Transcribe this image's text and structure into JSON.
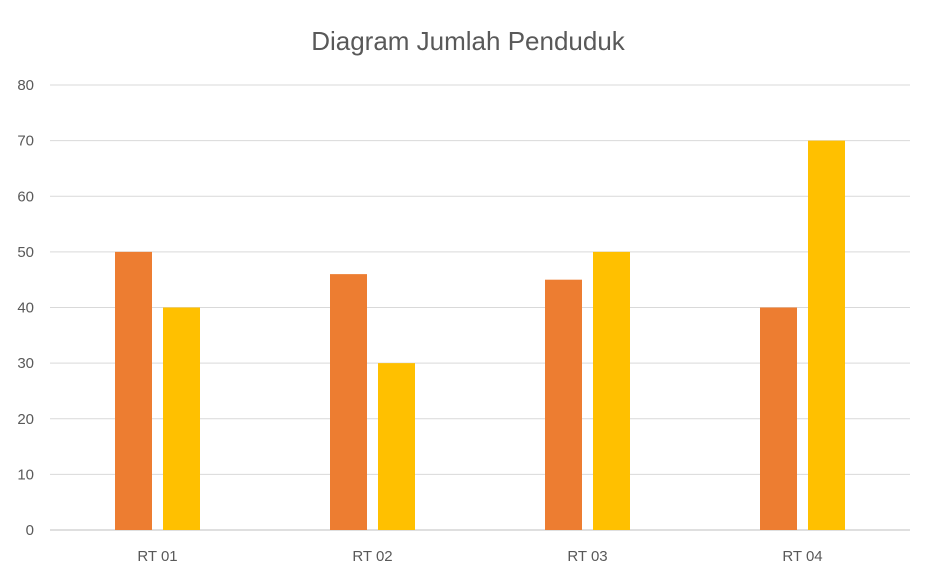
{
  "chart_data": {
    "type": "bar",
    "title": "Diagram Jumlah Penduduk",
    "xlabel": "",
    "ylabel": "",
    "categories": [
      "RT 01",
      "RT 02",
      "RT 03",
      "RT 04"
    ],
    "series": [
      {
        "values": [
          50,
          46,
          45,
          40
        ],
        "color": "#ed7d31"
      },
      {
        "values": [
          40,
          30,
          50,
          70
        ],
        "color": "#ffc000"
      }
    ],
    "ylim": [
      0,
      80
    ],
    "yticks": [
      "0",
      "10",
      "20",
      "30",
      "40",
      "50",
      "60",
      "70",
      "80"
    ],
    "grid": true,
    "legend": "none"
  }
}
